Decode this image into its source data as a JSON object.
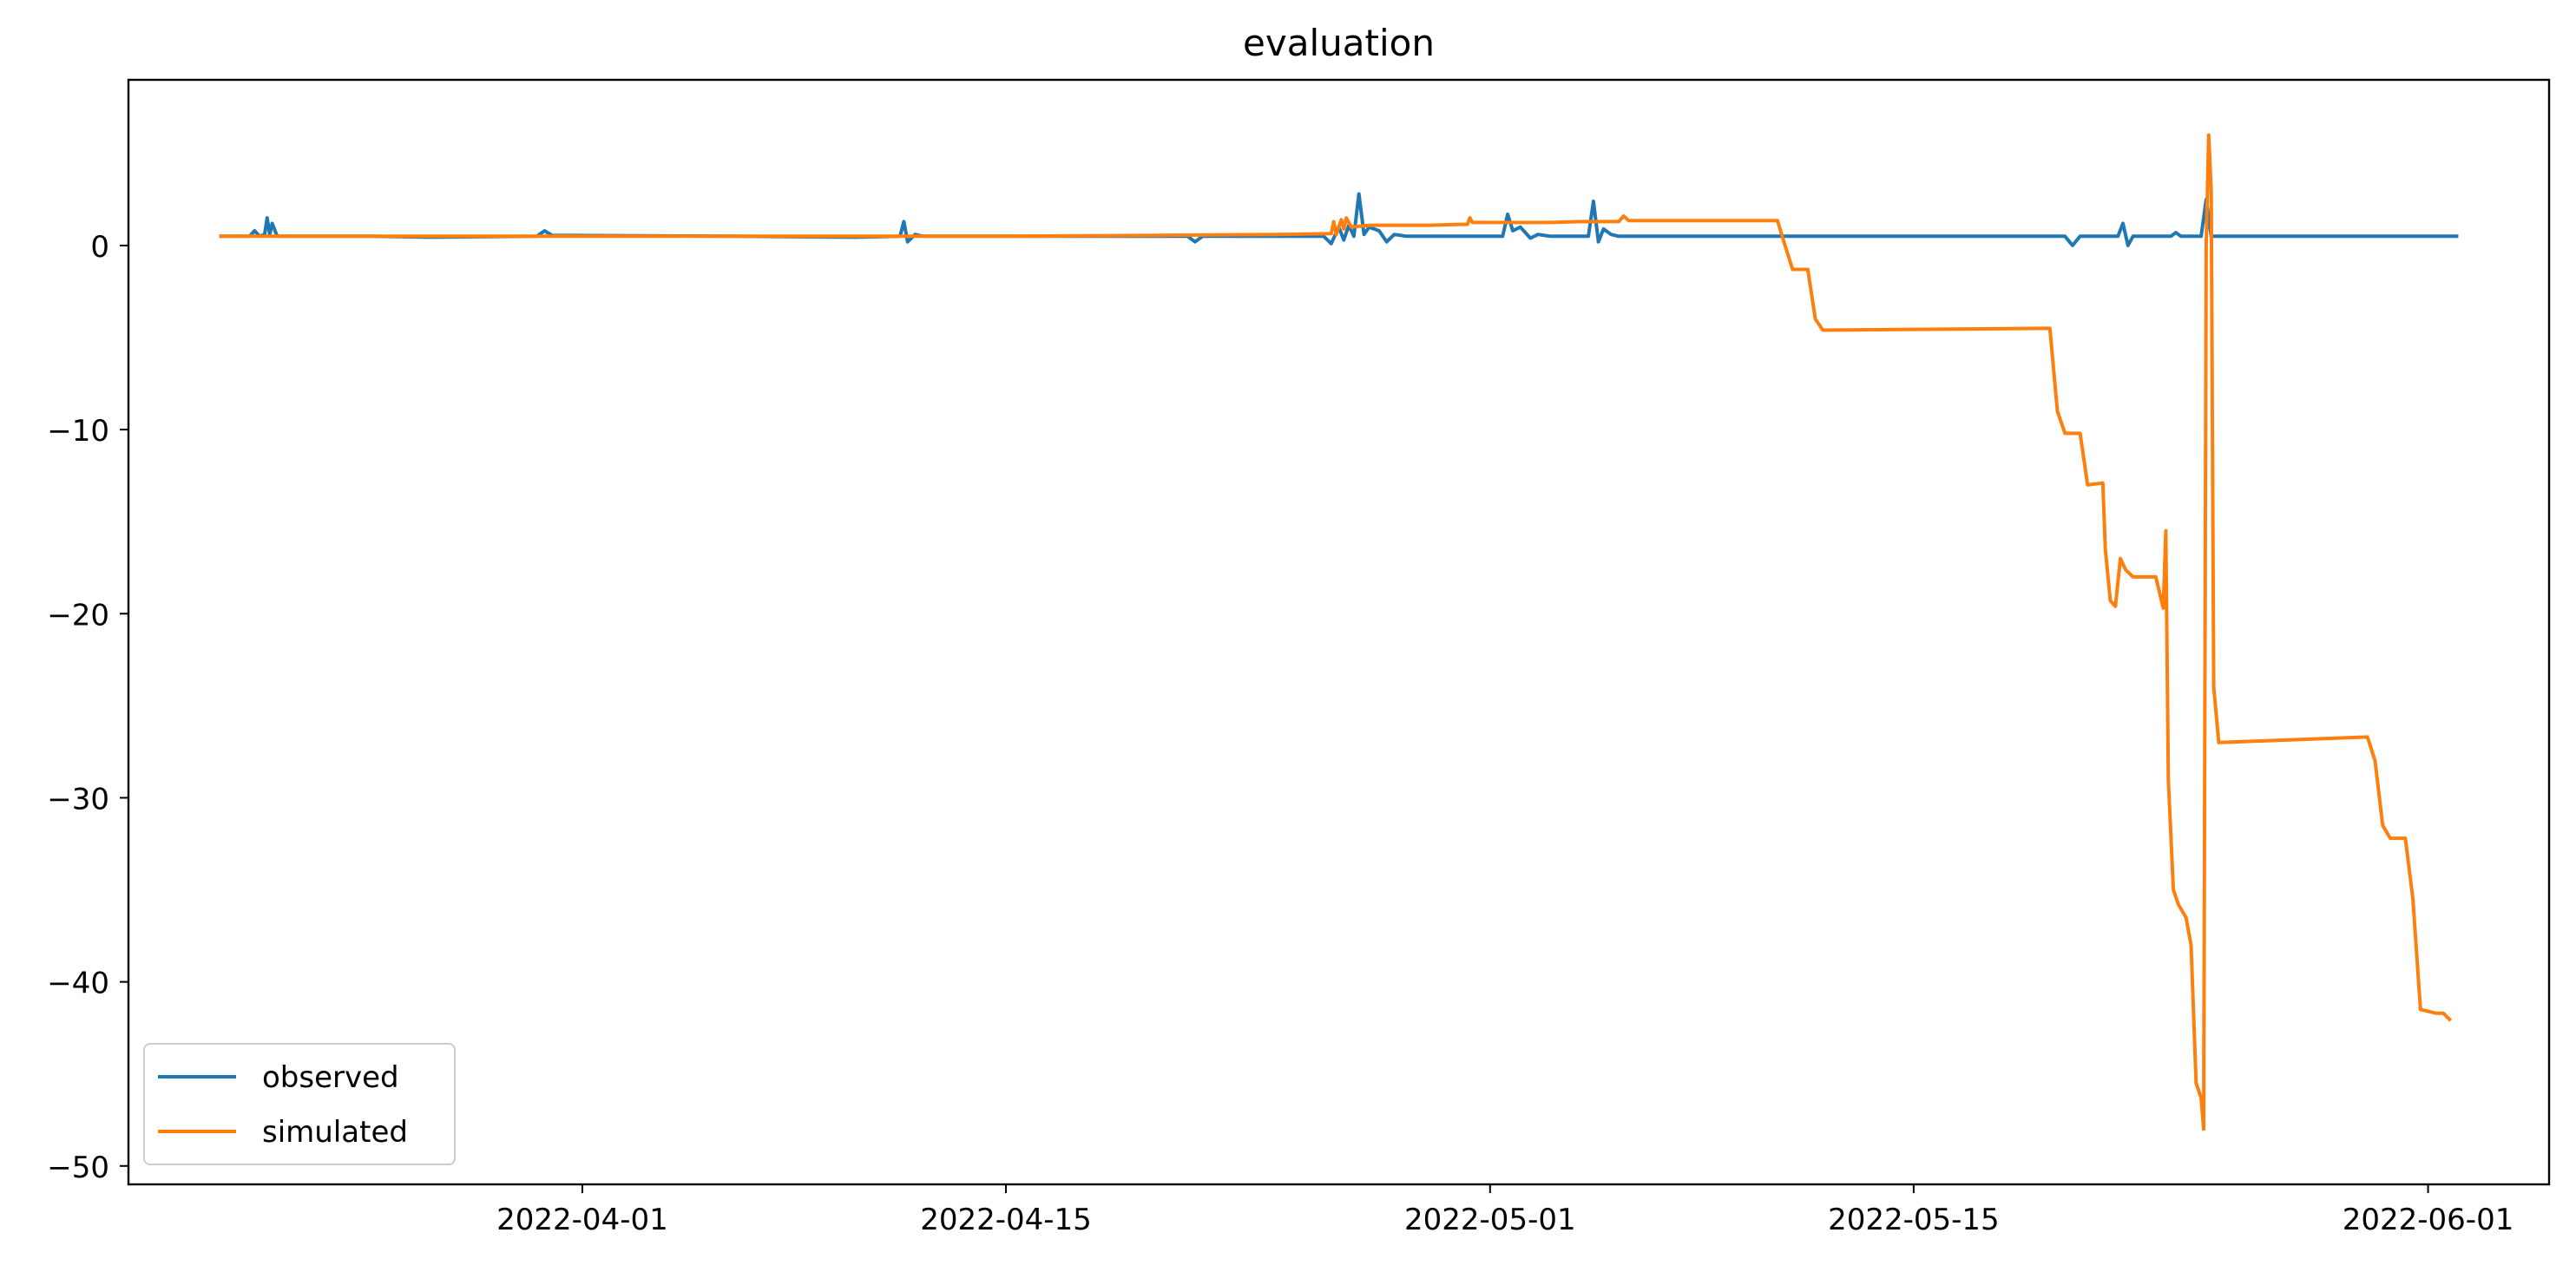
{
  "chart_data": {
    "type": "line",
    "title": "evaluation",
    "xlabel": "",
    "ylabel": "",
    "x_axis_type": "date",
    "xlim": [
      "2022-03-17",
      "2022-06-05"
    ],
    "ylim": [
      -51,
      9
    ],
    "x_ticks": [
      "2022-04-01",
      "2022-04-15",
      "2022-05-01",
      "2022-05-15",
      "2022-06-01"
    ],
    "y_ticks": [
      0,
      -10,
      -20,
      -30,
      -40,
      -50
    ],
    "y_tick_labels": [
      "0",
      "−10",
      "−20",
      "−30",
      "−40",
      "−50"
    ],
    "grid": false,
    "legend_position": "lower-left",
    "series": [
      {
        "name": "observed",
        "color": "#1f77b4",
        "points": [
          [
            "2022-03-20T00:00",
            0.5
          ],
          [
            "2022-03-21T00:00",
            0.5
          ],
          [
            "2022-03-21T04:00",
            0.8
          ],
          [
            "2022-03-21T08:00",
            0.5
          ],
          [
            "2022-03-21T12:00",
            0.6
          ],
          [
            "2022-03-21T14:00",
            1.5
          ],
          [
            "2022-03-21T16:00",
            0.6
          ],
          [
            "2022-03-21T18:00",
            1.2
          ],
          [
            "2022-03-21T22:00",
            0.5
          ],
          [
            "2022-03-25T00:00",
            0.5
          ],
          [
            "2022-03-27T00:00",
            0.45
          ],
          [
            "2022-03-30T12:00",
            0.5
          ],
          [
            "2022-03-30T18:00",
            0.8
          ],
          [
            "2022-03-31T00:00",
            0.55
          ],
          [
            "2022-04-06T00:00",
            0.5
          ],
          [
            "2022-04-10T00:00",
            0.45
          ],
          [
            "2022-04-11T12:00",
            0.5
          ],
          [
            "2022-04-11T15:00",
            1.3
          ],
          [
            "2022-04-11T18:00",
            0.2
          ],
          [
            "2022-04-12T00:00",
            0.6
          ],
          [
            "2022-04-12T06:00",
            0.5
          ],
          [
            "2022-04-14T00:00",
            0.5
          ],
          [
            "2022-04-20T00:00",
            0.5
          ],
          [
            "2022-04-21T00:00",
            0.5
          ],
          [
            "2022-04-21T06:00",
            0.2
          ],
          [
            "2022-04-21T12:00",
            0.5
          ],
          [
            "2022-04-25T00:00",
            0.5
          ],
          [
            "2022-04-25T12:00",
            0.5
          ],
          [
            "2022-04-25T18:00",
            0.1
          ],
          [
            "2022-04-26T00:00",
            1.0
          ],
          [
            "2022-04-26T04:00",
            0.3
          ],
          [
            "2022-04-26T08:00",
            1.1
          ],
          [
            "2022-04-26T12:00",
            0.5
          ],
          [
            "2022-04-26T16:00",
            2.8
          ],
          [
            "2022-04-26T20:00",
            0.6
          ],
          [
            "2022-04-27T00:00",
            1.0
          ],
          [
            "2022-04-27T08:00",
            0.8
          ],
          [
            "2022-04-27T14:00",
            0.2
          ],
          [
            "2022-04-27T20:00",
            0.6
          ],
          [
            "2022-04-28T06:00",
            0.5
          ],
          [
            "2022-04-30T00:00",
            0.5
          ],
          [
            "2022-05-01T00:00",
            0.5
          ],
          [
            "2022-05-01T10:00",
            0.5
          ],
          [
            "2022-05-01T14:00",
            1.7
          ],
          [
            "2022-05-01T18:00",
            0.8
          ],
          [
            "2022-05-02T00:00",
            1.0
          ],
          [
            "2022-05-02T08:00",
            0.4
          ],
          [
            "2022-05-02T14:00",
            0.6
          ],
          [
            "2022-05-03T00:00",
            0.5
          ],
          [
            "2022-05-04T00:00",
            0.5
          ],
          [
            "2022-05-04T06:00",
            0.5
          ],
          [
            "2022-05-04T10:00",
            2.4
          ],
          [
            "2022-05-04T14:00",
            0.2
          ],
          [
            "2022-05-04T18:00",
            0.9
          ],
          [
            "2022-05-05T00:00",
            0.6
          ],
          [
            "2022-05-05T06:00",
            0.5
          ],
          [
            "2022-05-10T00:00",
            0.5
          ],
          [
            "2022-05-18T00:00",
            0.5
          ],
          [
            "2022-05-20T00:00",
            0.5
          ],
          [
            "2022-05-20T06:00",
            0.0
          ],
          [
            "2022-05-20T12:00",
            0.5
          ],
          [
            "2022-05-21T18:00",
            0.5
          ],
          [
            "2022-05-21T22:00",
            1.2
          ],
          [
            "2022-05-22T02:00",
            0.0
          ],
          [
            "2022-05-22T06:00",
            0.5
          ],
          [
            "2022-05-23T12:00",
            0.5
          ],
          [
            "2022-05-23T16:00",
            0.7
          ],
          [
            "2022-05-23T20:00",
            0.5
          ],
          [
            "2022-05-24T12:00",
            0.5
          ],
          [
            "2022-05-24T16:00",
            2.5
          ],
          [
            "2022-05-24T20:00",
            0.5
          ],
          [
            "2022-05-25T04:00",
            0.5
          ],
          [
            "2022-05-28T00:00",
            0.5
          ],
          [
            "2022-06-02T00:00",
            0.5
          ]
        ]
      },
      {
        "name": "simulated",
        "color": "#ff7f0e",
        "points": [
          [
            "2022-03-20T00:00",
            0.5
          ],
          [
            "2022-04-05T00:00",
            0.5
          ],
          [
            "2022-04-15T00:00",
            0.5
          ],
          [
            "2022-04-20T00:00",
            0.55
          ],
          [
            "2022-04-24T00:00",
            0.6
          ],
          [
            "2022-04-25T18:00",
            0.65
          ],
          [
            "2022-04-25T20:00",
            1.3
          ],
          [
            "2022-04-25T22:00",
            0.6
          ],
          [
            "2022-04-26T02:00",
            1.4
          ],
          [
            "2022-04-26T04:00",
            0.9
          ],
          [
            "2022-04-26T06:00",
            1.5
          ],
          [
            "2022-04-26T10:00",
            1.0
          ],
          [
            "2022-04-27T00:00",
            1.1
          ],
          [
            "2022-04-29T00:00",
            1.1
          ],
          [
            "2022-04-30T00:00",
            1.15
          ],
          [
            "2022-04-30T06:00",
            1.15
          ],
          [
            "2022-04-30T08:00",
            1.5
          ],
          [
            "2022-04-30T10:00",
            1.25
          ],
          [
            "2022-05-03T00:00",
            1.25
          ],
          [
            "2022-05-04T00:00",
            1.3
          ],
          [
            "2022-05-05T06:00",
            1.3
          ],
          [
            "2022-05-05T10:00",
            1.6
          ],
          [
            "2022-05-05T14:00",
            1.35
          ],
          [
            "2022-05-10T12:00",
            1.35
          ],
          [
            "2022-05-10T18:00",
            0.0
          ],
          [
            "2022-05-11T00:00",
            -1.3
          ],
          [
            "2022-05-11T12:00",
            -1.3
          ],
          [
            "2022-05-11T18:00",
            -4.0
          ],
          [
            "2022-05-12T00:00",
            -4.6
          ],
          [
            "2022-05-19T12:00",
            -4.5
          ],
          [
            "2022-05-19T18:00",
            -9.0
          ],
          [
            "2022-05-20T00:00",
            -10.2
          ],
          [
            "2022-05-20T12:00",
            -10.2
          ],
          [
            "2022-05-20T18:00",
            -13.0
          ],
          [
            "2022-05-21T06:00",
            -12.9
          ],
          [
            "2022-05-21T08:00",
            -16.5
          ],
          [
            "2022-05-21T12:00",
            -19.3
          ],
          [
            "2022-05-21T16:00",
            -19.6
          ],
          [
            "2022-05-21T20:00",
            -17.0
          ],
          [
            "2022-05-22T00:00",
            -17.6
          ],
          [
            "2022-05-22T06:00",
            -18.0
          ],
          [
            "2022-05-23T00:00",
            -18.0
          ],
          [
            "2022-05-23T06:00",
            -19.7
          ],
          [
            "2022-05-23T08:00",
            -15.5
          ],
          [
            "2022-05-23T10:00",
            -29.0
          ],
          [
            "2022-05-23T14:00",
            -35.0
          ],
          [
            "2022-05-23T18:00",
            -35.8
          ],
          [
            "2022-05-24T00:00",
            -36.5
          ],
          [
            "2022-05-24T04:00",
            -38.0
          ],
          [
            "2022-05-24T08:00",
            -45.5
          ],
          [
            "2022-05-24T12:00",
            -46.3
          ],
          [
            "2022-05-24T14:00",
            -48.0
          ],
          [
            "2022-05-24T16:00",
            0.0
          ],
          [
            "2022-05-24T18:00",
            6.0
          ],
          [
            "2022-05-24T20:00",
            3.0
          ],
          [
            "2022-05-24T22:00",
            -24.0
          ],
          [
            "2022-05-25T02:00",
            -27.0
          ],
          [
            "2022-05-30T00:00",
            -26.7
          ],
          [
            "2022-05-30T06:00",
            -28.0
          ],
          [
            "2022-05-30T12:00",
            -31.5
          ],
          [
            "2022-05-30T18:00",
            -32.2
          ],
          [
            "2022-05-31T06:00",
            -32.2
          ],
          [
            "2022-05-31T12:00",
            -35.5
          ],
          [
            "2022-05-31T18:00",
            -41.5
          ],
          [
            "2022-06-01T06:00",
            -41.7
          ],
          [
            "2022-06-01T12:00",
            -41.7
          ],
          [
            "2022-06-01T18:00",
            -42.1
          ]
        ]
      }
    ]
  }
}
